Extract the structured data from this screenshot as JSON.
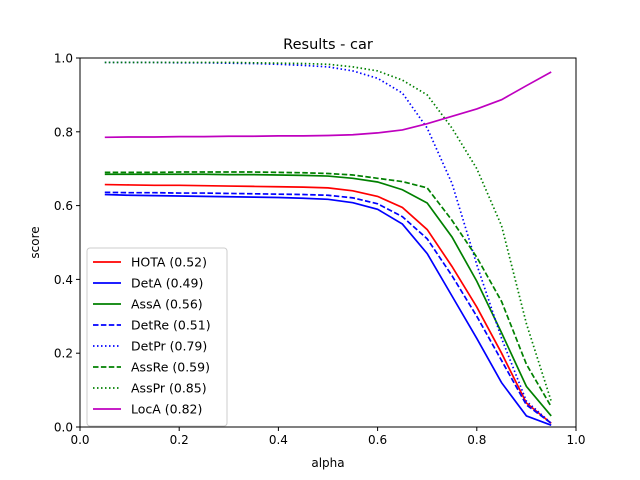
{
  "chart_data": {
    "type": "line",
    "title": "Results - car",
    "xlabel": "alpha",
    "ylabel": "score",
    "xlim": [
      0.0,
      1.0
    ],
    "ylim": [
      0.0,
      1.0
    ],
    "xticks": [
      "0.0",
      "0.2",
      "0.4",
      "0.6",
      "0.8",
      "1.0"
    ],
    "yticks": [
      "0.0",
      "0.2",
      "0.4",
      "0.6",
      "0.8",
      "1.0"
    ],
    "grid": false,
    "legend_position": "lower-left",
    "x": [
      0.05,
      0.1,
      0.15,
      0.2,
      0.25,
      0.3,
      0.35,
      0.4,
      0.45,
      0.5,
      0.55,
      0.6,
      0.65,
      0.7,
      0.75,
      0.8,
      0.85,
      0.9,
      0.95
    ],
    "series": [
      {
        "name": "HOTA (0.52)",
        "color": "#ff0000",
        "dash": "solid",
        "values": [
          0.657,
          0.656,
          0.655,
          0.655,
          0.654,
          0.653,
          0.652,
          0.651,
          0.65,
          0.648,
          0.64,
          0.625,
          0.595,
          0.535,
          0.435,
          0.325,
          0.2,
          0.065,
          0.01
        ]
      },
      {
        "name": "DetA (0.49)",
        "color": "#0000ff",
        "dash": "solid",
        "values": [
          0.63,
          0.628,
          0.627,
          0.626,
          0.625,
          0.624,
          0.623,
          0.622,
          0.62,
          0.617,
          0.608,
          0.59,
          0.55,
          0.47,
          0.355,
          0.24,
          0.12,
          0.03,
          0.005
        ]
      },
      {
        "name": "AssA (0.56)",
        "color": "#008000",
        "dash": "solid",
        "values": [
          0.685,
          0.685,
          0.685,
          0.685,
          0.685,
          0.684,
          0.684,
          0.683,
          0.682,
          0.68,
          0.674,
          0.664,
          0.643,
          0.607,
          0.515,
          0.395,
          0.255,
          0.11,
          0.03
        ]
      },
      {
        "name": "DetRe (0.51)",
        "color": "#0000ff",
        "dash": "dashed",
        "values": [
          0.636,
          0.635,
          0.635,
          0.634,
          0.634,
          0.633,
          0.632,
          0.631,
          0.63,
          0.628,
          0.621,
          0.605,
          0.57,
          0.51,
          0.41,
          0.3,
          0.18,
          0.06,
          0.01
        ]
      },
      {
        "name": "DetPr (0.79)",
        "color": "#0000ff",
        "dash": "dotted",
        "values": [
          0.988,
          0.988,
          0.988,
          0.987,
          0.987,
          0.986,
          0.985,
          0.983,
          0.98,
          0.976,
          0.965,
          0.945,
          0.905,
          0.81,
          0.66,
          0.44,
          0.24,
          0.07,
          0.01
        ]
      },
      {
        "name": "AssRe (0.59)",
        "color": "#008000",
        "dash": "dashed",
        "values": [
          0.69,
          0.69,
          0.69,
          0.691,
          0.691,
          0.691,
          0.691,
          0.69,
          0.689,
          0.687,
          0.683,
          0.674,
          0.665,
          0.648,
          0.56,
          0.46,
          0.34,
          0.17,
          0.055
        ]
      },
      {
        "name": "AssPr (0.85)",
        "color": "#008000",
        "dash": "dotted",
        "values": [
          0.988,
          0.988,
          0.988,
          0.988,
          0.988,
          0.988,
          0.987,
          0.986,
          0.985,
          0.983,
          0.976,
          0.965,
          0.94,
          0.9,
          0.81,
          0.7,
          0.545,
          0.28,
          0.07
        ]
      },
      {
        "name": "LocA (0.82)",
        "color": "#bf00bf",
        "dash": "solid",
        "values": [
          0.785,
          0.786,
          0.786,
          0.787,
          0.787,
          0.788,
          0.788,
          0.789,
          0.789,
          0.79,
          0.792,
          0.797,
          0.805,
          0.822,
          0.842,
          0.862,
          0.887,
          0.925,
          0.962
        ]
      }
    ]
  }
}
